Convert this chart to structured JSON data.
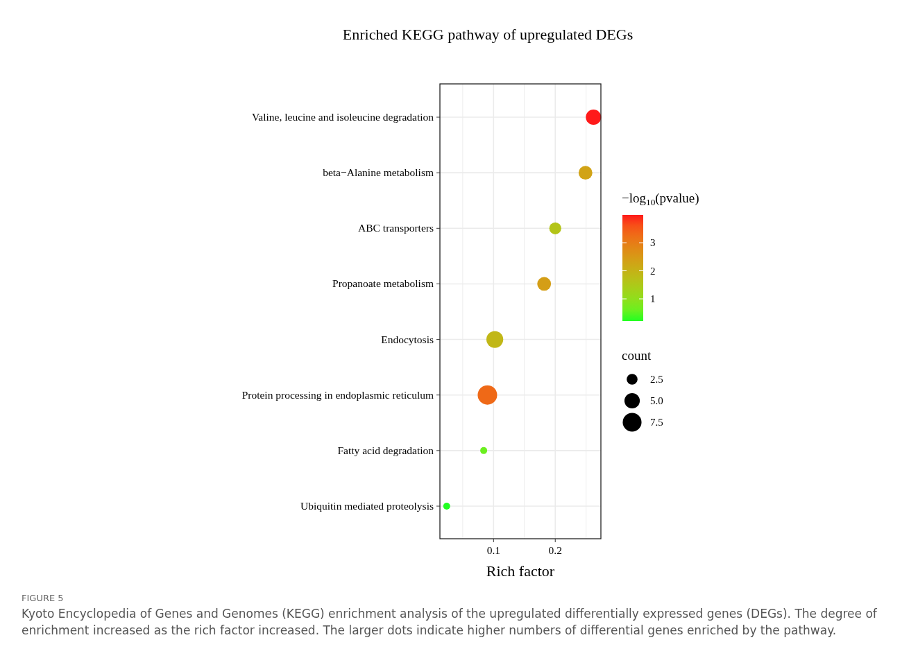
{
  "chart_data": {
    "type": "bubble",
    "orientation": "horizontal",
    "title": "Enriched KEGG pathway of upregulated DEGs",
    "xlabel": "Rich factor",
    "categories": [
      "Valine, leucine and isoleucine degradation",
      "beta−Alanine metabolism",
      "ABC transporters",
      "Propanoate metabolism",
      "Endocytosis",
      "Protein processing in endoplasmic reticulum",
      "Fatty acid degradation",
      "Ubiquitin mediated proteolysis"
    ],
    "values": [
      0.262,
      0.249,
      0.2,
      0.182,
      0.102,
      0.09,
      0.084,
      0.024
    ],
    "sizes": [
      5,
      4,
      3,
      4,
      6,
      8,
      1,
      1
    ],
    "size_legend": [
      2.5,
      {
        "value": 5,
        "label": "5.0"
      },
      7.5
    ],
    "legend_title": "count",
    "cvalues": [
      3.99,
      2.3,
      1.6,
      2.4,
      1.9,
      3.3,
      0.6,
      0.21
    ],
    "clim": [
      0.21,
      3.99
    ],
    "cticks": [
      1,
      2,
      3
    ],
    "clabel": "−log$_{10}$(pvalue)",
    "xlim": [
      0.013,
      0.274
    ],
    "xticks": [
      {
        "value": 0.05,
        "label": null
      },
      0.1,
      {
        "value": 0.15,
        "label": null
      },
      0.2,
      {
        "value": 0.25,
        "label": null
      }
    ],
    "grid": true,
    "annotations": [
      "FIGURE 5",
      "Kyoto Encyclopedia of Genes and Genomes (KEGG) enrichment analysis of the upregulated differentially expressed genes (DEGs). The degree of enrichment increased as the rich factor increased. The larger dots indicate higher numbers of differential genes enriched by the pathway."
    ]
  }
}
